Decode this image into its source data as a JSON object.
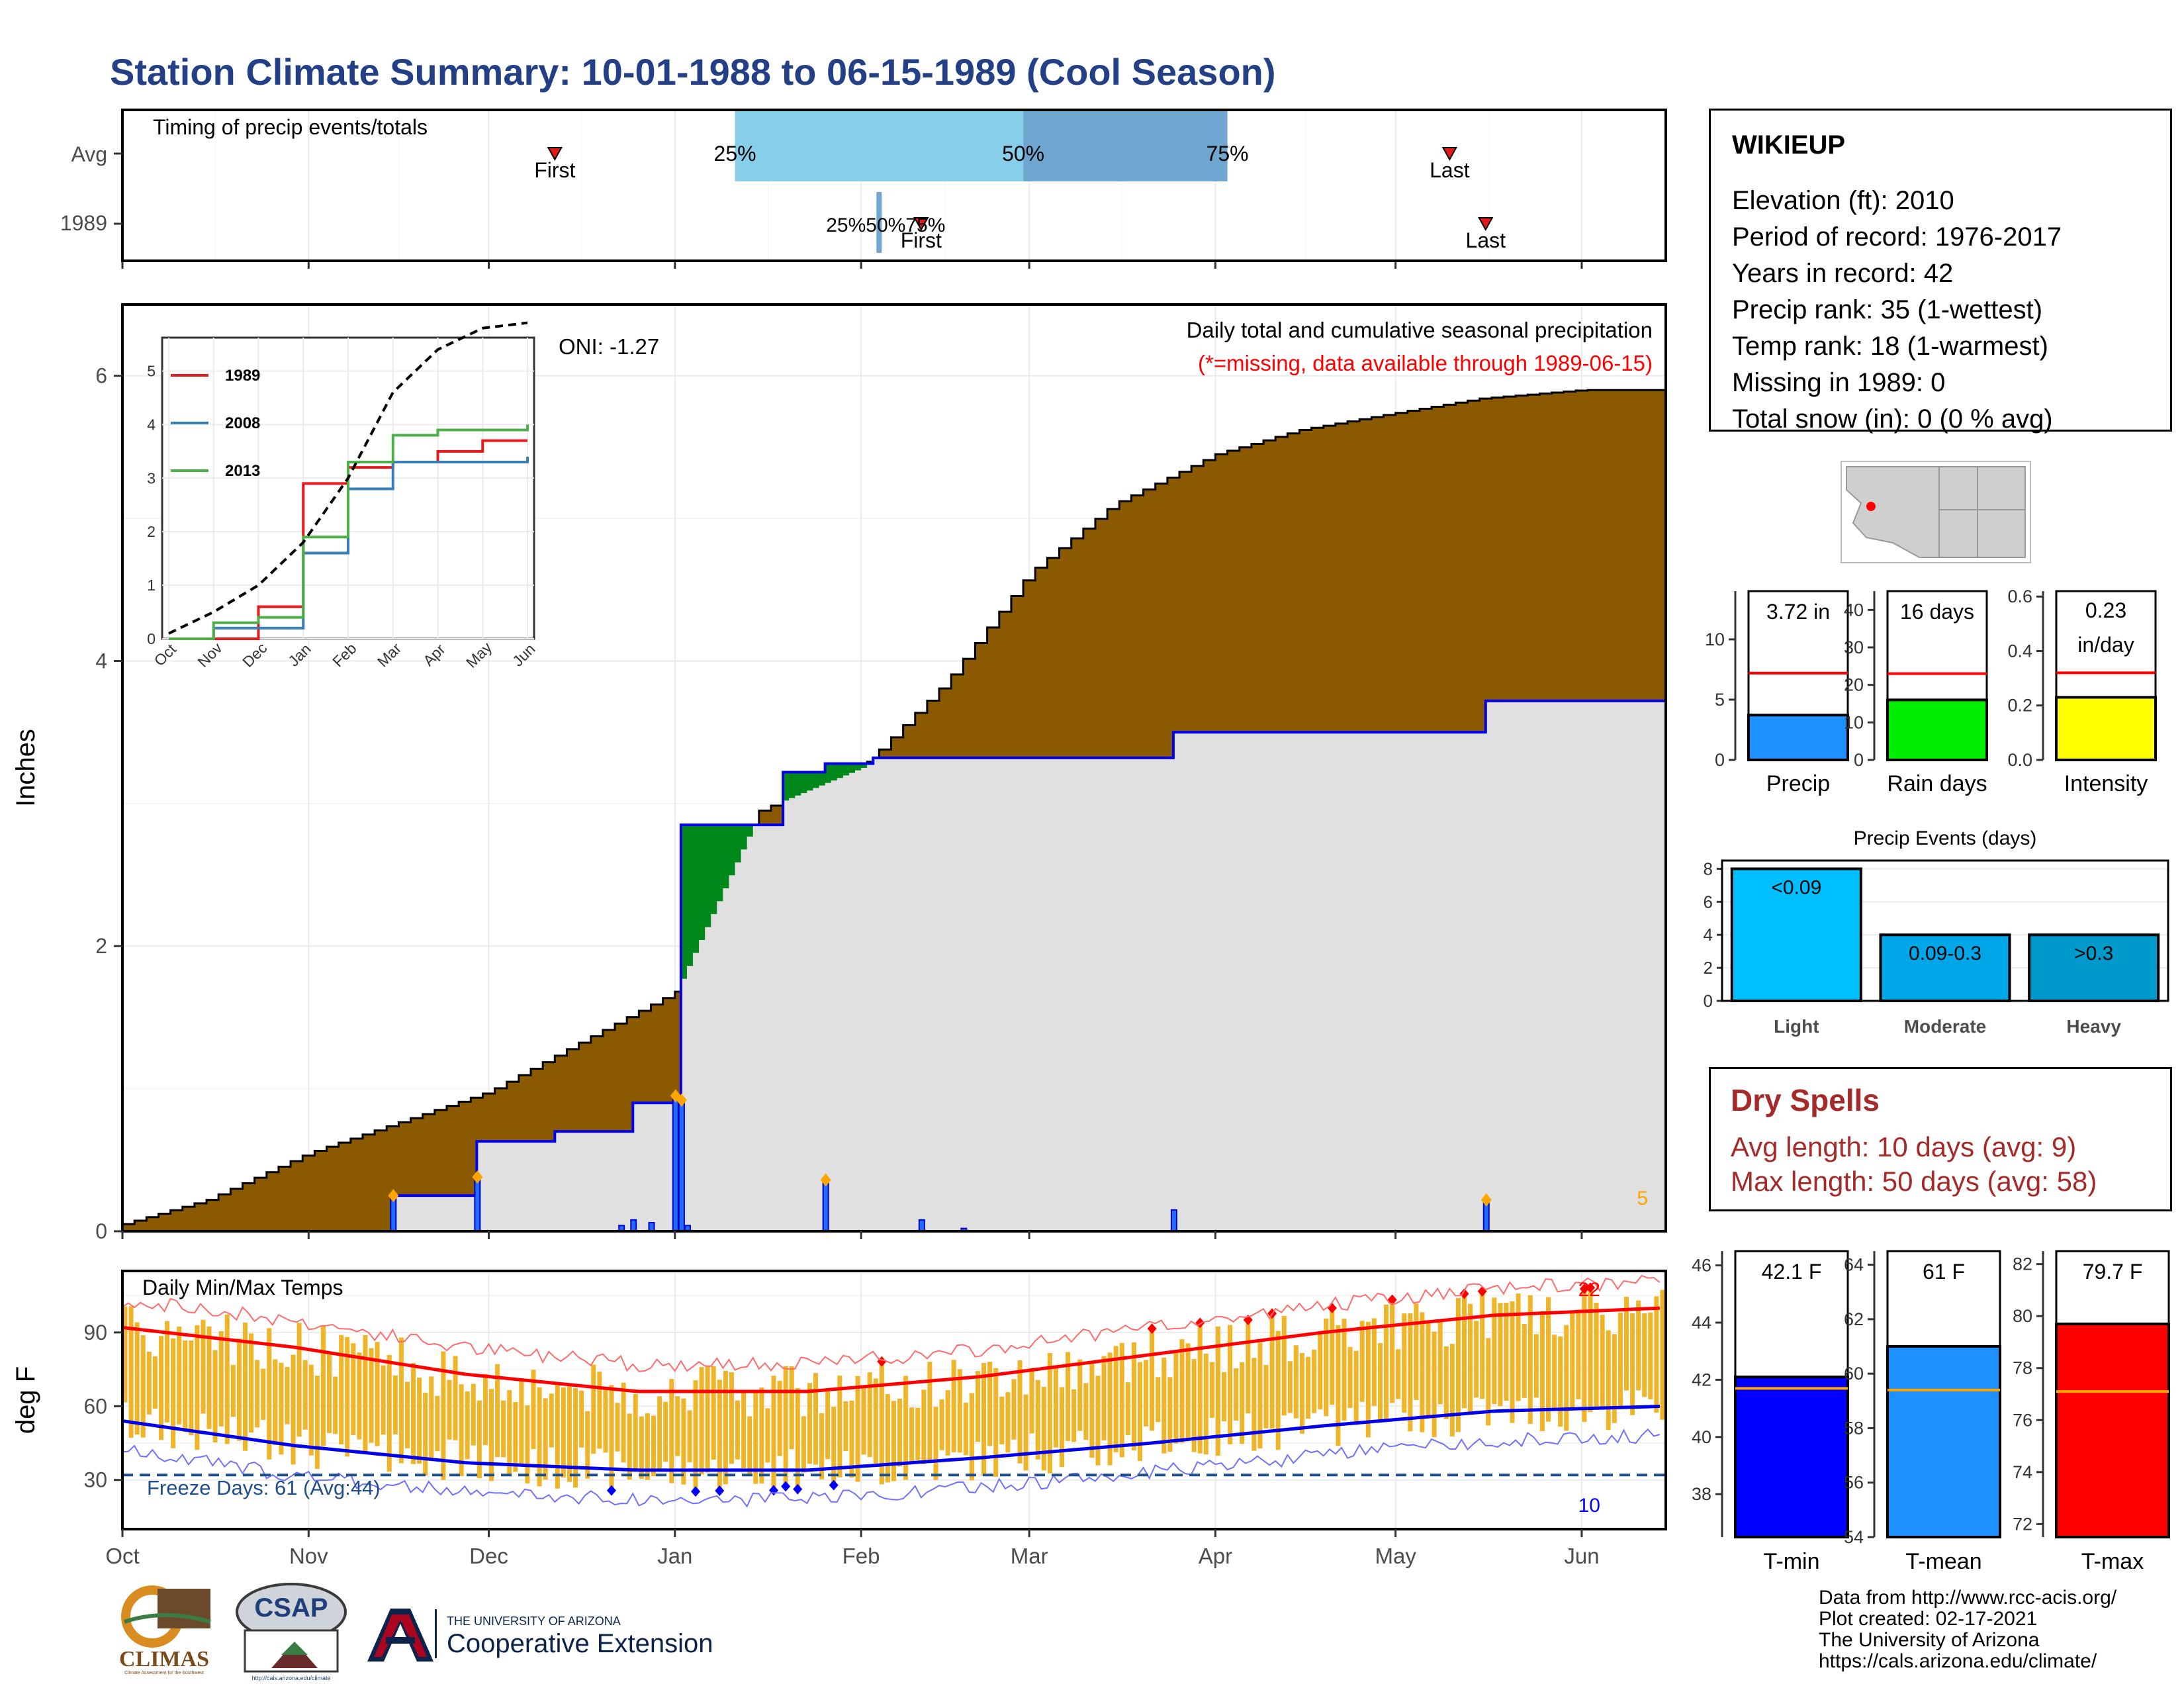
{
  "title": "Station Climate Summary: 10-01-1988 to 06-15-1989 (Cool Season)",
  "timing": {
    "label": "Timing of precip events/totals",
    "rows": [
      "Avg",
      "1989"
    ],
    "avg_first_label": "First",
    "avg_last_label": "Last",
    "y1989_first_label": "First",
    "y1989_last_label": "Last",
    "pct_labels": [
      "25%",
      "50%",
      "75%"
    ],
    "y1989_pct_label": "25%50%75%",
    "avg_first_day": 72,
    "avg_last_day": 221,
    "y1989_first_day": 133,
    "y1989_last_day": 227,
    "avg_pct_days": [
      102,
      150,
      184
    ],
    "y1989_pct_days": [
      126,
      126,
      126
    ]
  },
  "main_panel": {
    "ylabel": "Inches",
    "subtitle": "Daily total and cumulative seasonal precipitation",
    "missing_note": "(*=missing, data available through 1989-06-15)",
    "oni": "ONI: -1.27",
    "corner_count": "5",
    "yticks": [
      "0",
      "2",
      "4",
      "6"
    ],
    "colors": {
      "avg_fill": "#8b5a00",
      "year_fill": "#e0e0e0",
      "above_fill": "#00891a",
      "line": "#0000ee",
      "extreme": "#ffa500"
    }
  },
  "chart_data": [
    {
      "type": "area",
      "name": "Cumulative seasonal precipitation",
      "x_unit": "date",
      "x_range": [
        "1988-10-01",
        "1989-06-15"
      ],
      "ylim": [
        0,
        6.5
      ],
      "series": [
        {
          "name": "Average cumulative",
          "x": [
            "1988-10-01",
            "1988-10-15",
            "1988-11-01",
            "1988-11-15",
            "1988-12-01",
            "1988-12-15",
            "1989-01-01",
            "1989-01-15",
            "1989-02-01",
            "1989-02-15",
            "1989-03-01",
            "1989-03-15",
            "1989-04-01",
            "1989-04-15",
            "1989-05-01",
            "1989-05-15",
            "1989-06-01",
            "1989-06-15"
          ],
          "values": [
            0.05,
            0.22,
            0.55,
            0.75,
            0.98,
            1.3,
            1.68,
            2.95,
            3.25,
            3.85,
            4.62,
            5.1,
            5.45,
            5.62,
            5.74,
            5.84,
            5.9,
            5.9
          ]
        },
        {
          "name": "1989 cumulative",
          "x": [
            "1988-10-01",
            "1988-11-14",
            "1988-11-15",
            "1988-11-29",
            "1988-12-12",
            "1988-12-25",
            "1989-01-01",
            "1989-01-02",
            "1989-01-19",
            "1989-01-26",
            "1989-02-03",
            "1989-03-25",
            "1989-05-16",
            "1989-06-15"
          ],
          "values": [
            0,
            0,
            0.25,
            0.63,
            0.7,
            0.9,
            0.92,
            2.85,
            3.22,
            3.28,
            3.32,
            3.5,
            3.72,
            3.72
          ]
        }
      ],
      "daily_precip": {
        "x": [
          "1988-11-15",
          "1988-11-29",
          "1988-12-23",
          "1988-12-25",
          "1988-12-28",
          "1989-01-01",
          "1989-01-02",
          "1989-01-03",
          "1989-01-26",
          "1989-02-11",
          "1989-02-18",
          "1989-03-25",
          "1989-05-16"
        ],
        "values": [
          0.25,
          0.38,
          0.04,
          0.08,
          0.06,
          0.95,
          0.92,
          0.04,
          0.36,
          0.08,
          0.02,
          0.15,
          0.22
        ]
      }
    },
    {
      "type": "line",
      "name": "Inset cumulative comparison",
      "categories": [
        "Oct",
        "Nov",
        "Dec",
        "Jan",
        "Feb",
        "Mar",
        "Apr",
        "May",
        "Jun"
      ],
      "ylim": [
        0,
        5.5
      ],
      "yticks": [
        "0",
        "1",
        "2",
        "3",
        "4",
        "5"
      ],
      "series": [
        {
          "name": "1989",
          "color": "#e41a1c",
          "values": [
            0,
            0,
            0.6,
            2.9,
            3.2,
            3.3,
            3.5,
            3.7,
            3.7
          ]
        },
        {
          "name": "2008",
          "color": "#377eb8",
          "values": [
            0,
            0.2,
            0.2,
            1.6,
            2.8,
            3.3,
            3.3,
            3.3,
            3.4
          ]
        },
        {
          "name": "2013",
          "color": "#4daf4a",
          "values": [
            0,
            0.3,
            0.4,
            1.9,
            3.3,
            3.8,
            3.9,
            3.9,
            4.0
          ]
        },
        {
          "name": "avg",
          "color": "#000000",
          "values": [
            0.1,
            0.5,
            1.0,
            1.8,
            3.0,
            4.6,
            5.4,
            5.8,
            5.9
          ]
        }
      ]
    },
    {
      "type": "bar",
      "name": "Daily Min/Max Temps",
      "ylim": [
        10,
        115
      ],
      "yticks": [
        "30",
        "60",
        "90"
      ],
      "freeze_line": 32,
      "x_months": [
        "Oct",
        "Nov",
        "Dec",
        "Jan",
        "Feb",
        "Mar",
        "Apr",
        "May",
        "Jun"
      ],
      "normal_max": [
        92,
        84,
        73,
        66,
        66,
        72,
        81,
        90,
        97,
        100
      ],
      "normal_min": [
        54,
        44,
        37,
        34,
        34,
        39,
        45,
        52,
        58,
        60
      ]
    },
    {
      "type": "bar",
      "name": "Season precip summary",
      "categories": [
        "Precip",
        "Rain days",
        "Intensity"
      ],
      "values": [
        3.72,
        16,
        0.23
      ],
      "averages": [
        7.2,
        23,
        0.32
      ],
      "labels": [
        "3.72 in",
        "16 days",
        "0.23 in/day"
      ],
      "ylims": [
        [
          0,
          14
        ],
        [
          0,
          45
        ],
        [
          0,
          0.62
        ]
      ],
      "yticks": [
        [
          "0",
          "5",
          "10"
        ],
        [
          "0",
          "10",
          "20",
          "30",
          "40"
        ],
        [
          "0.0",
          "0.2",
          "0.4",
          "0.6"
        ]
      ],
      "colors": [
        "#1e90ff",
        "#00ee00",
        "#ffff00"
      ]
    },
    {
      "type": "bar",
      "name": "Precip Events (days)",
      "title": "Precip Events (days)",
      "categories": [
        "Light",
        "Moderate",
        "Heavy"
      ],
      "bar_labels": [
        "<0.09",
        "0.09-0.3",
        ">0.3"
      ],
      "values": [
        8,
        4,
        4
      ],
      "ylim": [
        0,
        8.5
      ],
      "yticks": [
        "0",
        "2",
        "4",
        "6",
        "8"
      ],
      "colors": [
        "#00bfff",
        "#00a6e8",
        "#0099cc"
      ]
    },
    {
      "type": "bar",
      "name": "Season temperature summary",
      "categories": [
        "T-min",
        "T-mean",
        "T-max"
      ],
      "values": [
        42.1,
        61,
        79.7
      ],
      "averages": [
        41.7,
        59.4,
        77.1
      ],
      "labels": [
        "42.1 F",
        "61 F",
        "79.7 F"
      ],
      "ylims": [
        [
          36.5,
          46.5
        ],
        [
          54,
          64.5
        ],
        [
          71.5,
          82.5
        ]
      ],
      "yticks": [
        [
          "38",
          "40",
          "42",
          "44",
          "46"
        ],
        [
          "54",
          "56",
          "58",
          "60",
          "62",
          "64"
        ],
        [
          "72",
          "74",
          "76",
          "78",
          "80",
          "82"
        ]
      ],
      "colors": [
        "#0000ff",
        "#1e90ff",
        "#ff0000"
      ]
    }
  ],
  "temp_panel": {
    "label": "Daily Min/Max Temps",
    "ylabel": "deg F",
    "freeze_text": "Freeze Days: 61 (Avg:44)",
    "hot_count": "22",
    "cold_count": "10",
    "x_months": [
      "Oct",
      "Nov",
      "Dec",
      "Jan",
      "Feb",
      "Mar",
      "Apr",
      "May",
      "Jun"
    ],
    "colors": {
      "range": "#f0b429",
      "hot": "#ff0000",
      "cold": "#0000ff",
      "freeze": "#1f4e8c"
    }
  },
  "station": {
    "name": "WIKIEUP",
    "lines": [
      "Elevation (ft): 2010",
      "Period of record: 1976-2017",
      "Years in record: 42",
      "Precip rank: 35 (1-wettest)",
      "Temp rank: 18 (1-warmest)",
      "Missing in 1989: 0",
      "Total snow (in): 0 (0 % avg)"
    ]
  },
  "dry_spells": {
    "title": "Dry Spells",
    "avg": "Avg length: 10 days (avg: 9)",
    "max": "Max length: 50 days (avg: 58)"
  },
  "credits": [
    "Data from http://www.rcc-acis.org/",
    "Plot created: 02-17-2021",
    "The University of Arizona",
    "https://cals.arizona.edu/climate/"
  ],
  "logos": {
    "climas": "CLIMAS",
    "climas_sub": "Climate Assessment for the Southwest",
    "csap": "CSAP",
    "csap_url": "http://cals.arizona.edu/climate",
    "ua_top": "THE UNIVERSITY OF ARIZONA",
    "ua_bottom": "Cooperative Extension"
  }
}
